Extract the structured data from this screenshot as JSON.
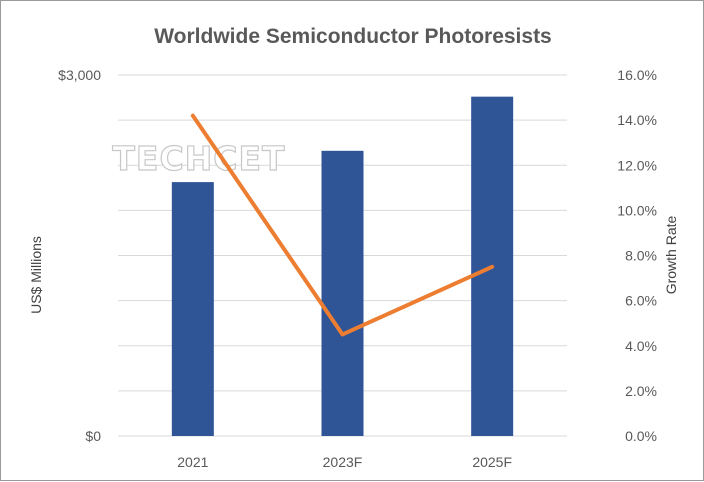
{
  "chart_data": {
    "type": "bar",
    "title": "Worldwide Semiconductor Photoresists",
    "categories": [
      "2021",
      "2023F",
      "2025F"
    ],
    "ylabel": "US$ Millions",
    "y2label": "Growth Rate",
    "ylim": [
      0,
      3000
    ],
    "y2lim": [
      0,
      16
    ],
    "y_ticks": [
      "$3,000",
      "$0"
    ],
    "y_tick_values": [
      3000,
      0
    ],
    "y2_ticks": [
      "16.0%",
      "14.0%",
      "12.0%",
      "10.0%",
      "8.0%",
      "6.0%",
      "4.0%",
      "2.0%",
      "0.0%"
    ],
    "y2_tick_values": [
      16,
      14,
      12,
      10,
      8,
      6,
      4,
      2,
      0
    ],
    "grid": true,
    "legend": "none",
    "watermark": "TECHCET",
    "series": [
      {
        "type": "bar",
        "values": [
          2110,
          2370,
          2820
        ],
        "color": "#2f5597"
      },
      {
        "type": "line",
        "axis": "secondary",
        "values": [
          14.2,
          4.5,
          7.5
        ],
        "color": "#ed7d31"
      }
    ]
  }
}
